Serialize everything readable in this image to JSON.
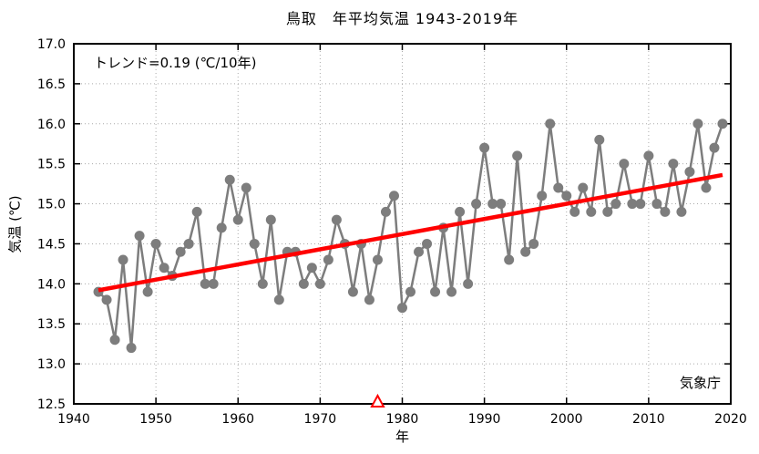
{
  "chart_data": {
    "type": "line",
    "title": "鳥取　年平均気温 1943-2019年",
    "xlabel": "年",
    "ylabel": "気温 (℃)",
    "xlim": [
      1940,
      2020
    ],
    "ylim": [
      12.5,
      17.0
    ],
    "x_tick_step": 10,
    "y_tick_step": 0.5,
    "grid": true,
    "x": [
      1943,
      1944,
      1945,
      1946,
      1947,
      1948,
      1949,
      1950,
      1951,
      1952,
      1953,
      1954,
      1955,
      1956,
      1957,
      1958,
      1959,
      1960,
      1961,
      1962,
      1963,
      1964,
      1965,
      1966,
      1967,
      1968,
      1969,
      1970,
      1971,
      1972,
      1973,
      1974,
      1975,
      1976,
      1977,
      1978,
      1979,
      1980,
      1981,
      1982,
      1983,
      1984,
      1985,
      1986,
      1987,
      1988,
      1989,
      1990,
      1991,
      1992,
      1993,
      1994,
      1995,
      1996,
      1997,
      1998,
      1999,
      2000,
      2001,
      2002,
      2003,
      2004,
      2005,
      2006,
      2007,
      2008,
      2009,
      2010,
      2011,
      2012,
      2013,
      2014,
      2015,
      2016,
      2017,
      2018,
      2019
    ],
    "values": [
      13.9,
      13.8,
      13.3,
      14.3,
      13.2,
      14.6,
      13.9,
      14.5,
      14.2,
      14.1,
      14.4,
      14.5,
      14.9,
      14.0,
      14.0,
      14.7,
      15.3,
      14.8,
      15.2,
      14.5,
      14.0,
      14.8,
      13.8,
      14.4,
      14.4,
      14.0,
      14.2,
      14.0,
      14.3,
      14.8,
      14.5,
      13.9,
      14.5,
      13.8,
      14.3,
      14.9,
      15.1,
      13.7,
      13.9,
      14.4,
      14.5,
      13.9,
      14.7,
      13.9,
      14.9,
      14.0,
      15.0,
      15.7,
      15.0,
      15.0,
      14.3,
      15.6,
      14.4,
      14.5,
      15.1,
      16.0,
      15.2,
      15.1,
      14.9,
      15.2,
      14.9,
      15.8,
      14.9,
      15.0,
      15.5,
      15.0,
      15.0,
      15.6,
      15.0,
      14.9,
      15.5,
      14.9,
      15.4,
      16.0,
      15.2,
      15.7,
      16.0
    ],
    "trend": {
      "label": "トレンド=0.19 (℃/10年)",
      "per_decade_c": 0.19,
      "start": {
        "year": 1943,
        "value": 13.92
      },
      "end": {
        "year": 2019,
        "value": 15.36
      }
    },
    "event_marker": {
      "year": 1977,
      "symbol": "triangle"
    },
    "source": "気象庁",
    "colors": {
      "series": "#7d7d7d",
      "trend": "#ff0000",
      "marker": "#ff0000",
      "grid": "#aaaaaa",
      "frame": "#000000"
    }
  }
}
